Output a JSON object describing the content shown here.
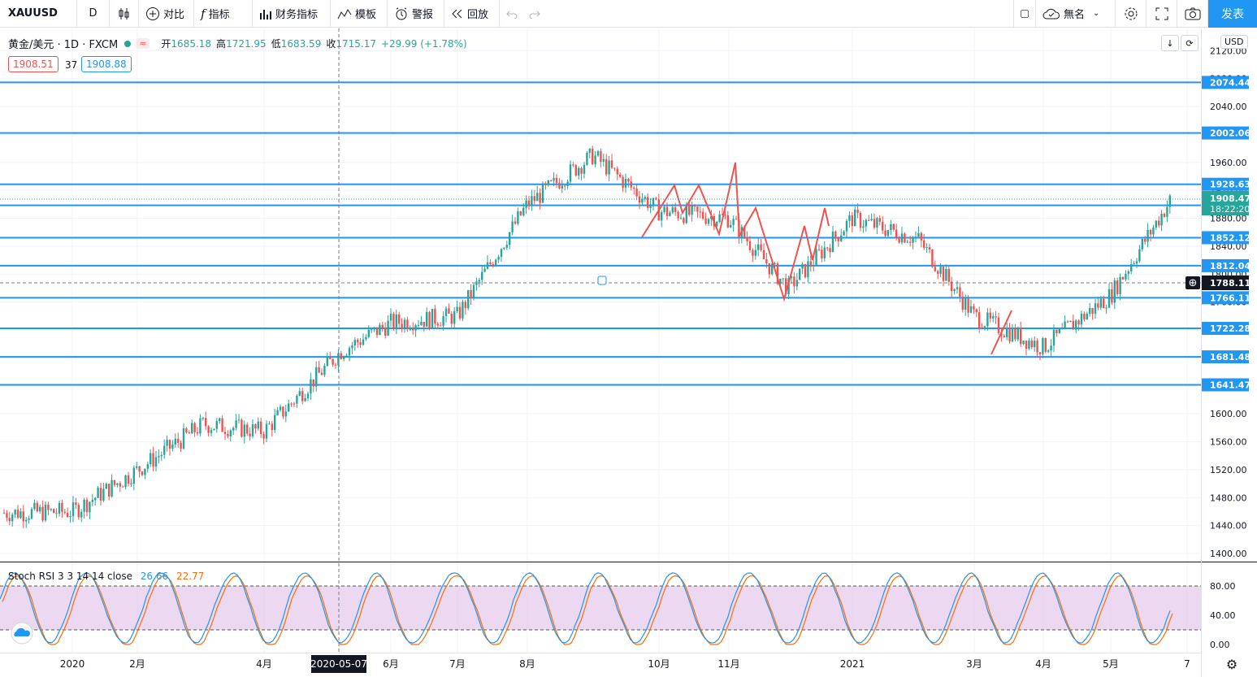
{
  "toolbar": {
    "symbol": "XAUUSD",
    "interval": "D",
    "compare": "对比",
    "indicators": "指标",
    "financials": "财务指标",
    "templates": "模板",
    "alert": "警报",
    "replay": "回放",
    "layout_name": "無名",
    "publish": "发表"
  },
  "legend": {
    "title": "黄金/美元 · 1D · FXCM",
    "open_label": "开",
    "open": "1685.18",
    "high_label": "高",
    "high": "1721.95",
    "low_label": "低",
    "low": "1683.59",
    "close_label": "收",
    "close": "1715.17",
    "change": "+29.99 (+1.78%)",
    "bid": "1908.51",
    "spread": "37",
    "ask": "1908.88"
  },
  "stoch": {
    "label": "Stoch RSI 3 3 14 14 close",
    "k": "26.66",
    "d": "22.77"
  },
  "price_axis": {
    "currency": "USD",
    "ticks": [
      "2120.00",
      "2080.00",
      "2040.00",
      "2000.00",
      "1960.00",
      "1920.00",
      "1880.00",
      "1840.00",
      "1800.00",
      "1760.00",
      "1720.00",
      "1680.00",
      "1640.00",
      "1600.00",
      "1560.00",
      "1520.00",
      "1480.00",
      "1440.00",
      "1400.00"
    ],
    "levels": [
      "2074.44",
      "2002.06",
      "1928.63",
      "1898.49",
      "1852.12",
      "1812.04",
      "1766.11",
      "1722.28",
      "1681.48",
      "1641.47"
    ],
    "last_price": "1908.47",
    "countdown": "18:22:20",
    "crosshair_price": "1788.11"
  },
  "stoch_axis": {
    "ticks": [
      "80.00",
      "40.00",
      "0.00"
    ]
  },
  "time_axis": {
    "labels": [
      "2020",
      "2月",
      "4月",
      "6月",
      "7月",
      "8月",
      "10月",
      "11月",
      "2021",
      "3月",
      "4月",
      "5月",
      "7"
    ],
    "crosshair_date": "2020-05-07"
  },
  "colors": {
    "up": "#26a69a",
    "down": "#ef5350",
    "level": "#2196f3",
    "stoch_k": "#2196f3",
    "stoch_d": "#ff6d00",
    "band": "#e1bee7"
  },
  "chart_data": {
    "type": "candlestick",
    "title": "黄金/美元 · 1D · FXCM",
    "ylim": [
      1380,
      2130
    ],
    "series": [
      {
        "name": "close",
        "x": [
          "2019-12",
          "2020-01",
          "2020-02",
          "2020-03",
          "2020-04",
          "2020-05",
          "2020-06",
          "2020-07",
          "2020-08",
          "2020-09",
          "2020-10",
          "2020-11",
          "2020-12",
          "2021-01",
          "2021-02",
          "2021-03",
          "2021-04",
          "2021-05"
        ],
        "values": [
          1460,
          1520,
          1585,
          1575,
          1690,
          1730,
          1740,
          1900,
          1970,
          1890,
          1880,
          1780,
          1880,
          1850,
          1740,
          1695,
          1770,
          1905
        ]
      }
    ],
    "stoch_rsi": {
      "k": 26.66,
      "d": 22.77,
      "upper": 80,
      "lower": 20
    }
  }
}
